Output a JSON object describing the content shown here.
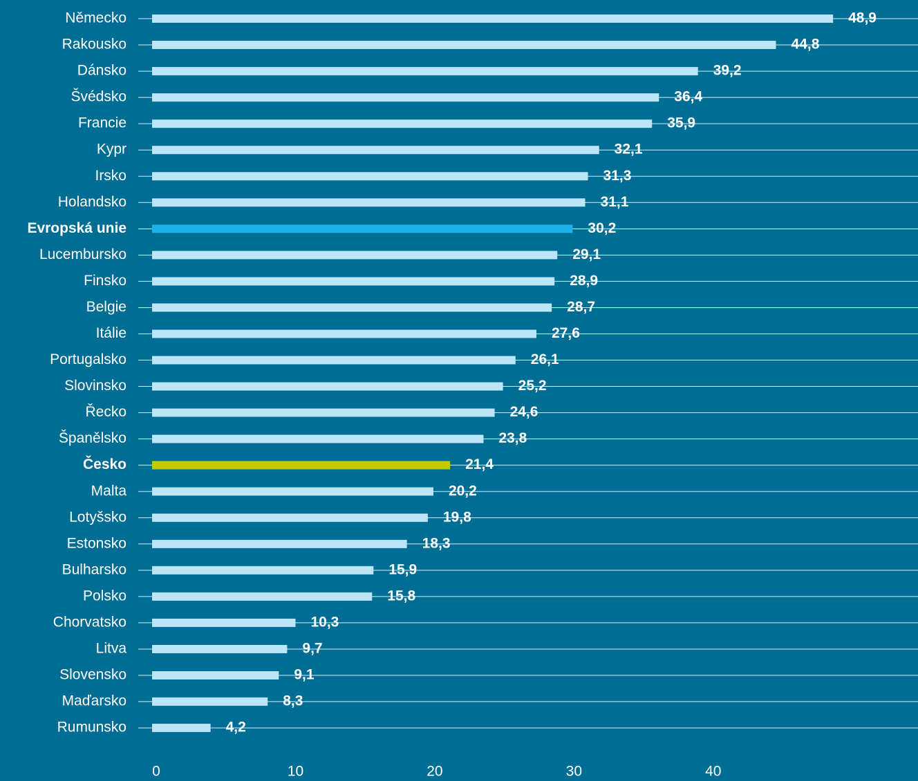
{
  "chart_data": {
    "type": "bar",
    "orientation": "horizontal",
    "categories": [
      "Německo",
      "Rakousko",
      "Dánsko",
      "Švédsko",
      "Francie",
      "Kypr",
      "Irsko",
      "Holandsko",
      "Evropská unie",
      "Lucembursko",
      "Finsko",
      "Belgie",
      "Itálie",
      "Portugalsko",
      "Slovinsko",
      "Řecko",
      "Španělsko",
      "Česko",
      "Malta",
      "Lotyšsko",
      "Estonsko",
      "Bulharsko",
      "Polsko",
      "Chorvatsko",
      "Litva",
      "Slovensko",
      "Maďarsko",
      "Rumunsko"
    ],
    "values": [
      48.9,
      44.8,
      39.2,
      36.4,
      35.9,
      32.1,
      31.3,
      31.1,
      30.2,
      29.1,
      28.9,
      28.7,
      27.6,
      26.1,
      25.2,
      24.6,
      23.8,
      21.4,
      20.2,
      19.8,
      18.3,
      15.9,
      15.8,
      10.3,
      9.7,
      9.1,
      8.3,
      4.2
    ],
    "value_labels": [
      "48,9",
      "44,8",
      "39,2",
      "36,4",
      "35,9",
      "32,1",
      "31,3",
      "31,1",
      "30,2",
      "29,1",
      "28,9",
      "28,7",
      "27,6",
      "26,1",
      "25,2",
      "24,6",
      "23,8",
      "21,4",
      "20,2",
      "19,8",
      "18,3",
      "15,9",
      "15,8",
      "10,3",
      "9,7",
      "9,1",
      "8,3",
      "4,2"
    ],
    "color": "#bde5f8",
    "colors": [
      "#bde5f8",
      "#bde5f8",
      "#bde5f8",
      "#bde5f8",
      "#bde5f8",
      "#bde5f8",
      "#bde5f8",
      "#bde5f8",
      "#1bb2e8",
      "#bde5f8",
      "#bde5f8",
      "#bde5f8",
      "#bde5f8",
      "#bde5f8",
      "#bde5f8",
      "#bde5f8",
      "#bde5f8",
      "#c3cb00",
      "#bde5f8",
      "#bde5f8",
      "#bde5f8",
      "#bde5f8",
      "#bde5f8",
      "#bde5f8",
      "#bde5f8",
      "#bde5f8",
      "#bde5f8",
      "#bde5f8"
    ],
    "xlim": [
      0,
      55
    ],
    "xticks": [
      0,
      10,
      20,
      30,
      40
    ]
  }
}
